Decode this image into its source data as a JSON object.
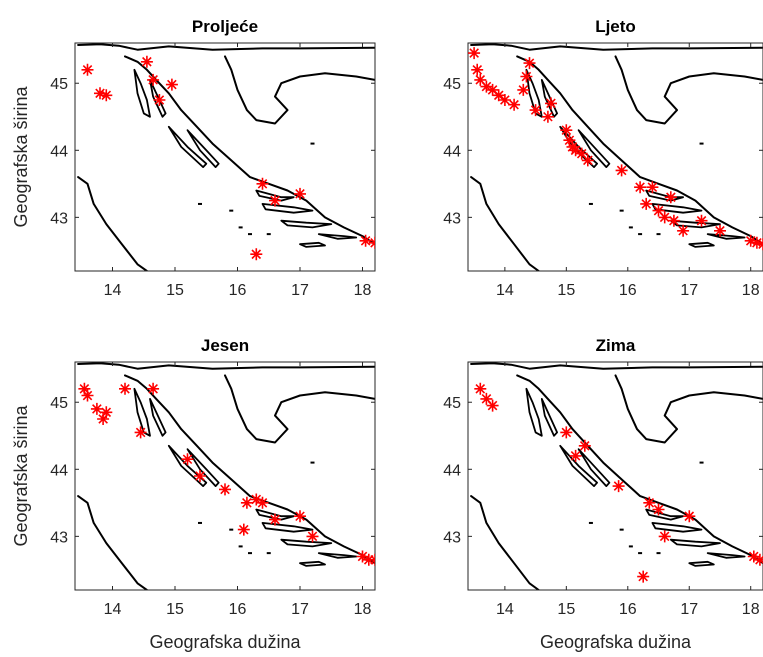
{
  "chart_data": [
    {
      "type": "scatter",
      "title": "Proljeće",
      "ylabel": "Geografska širina",
      "xlabel": "",
      "xticks": [
        "14",
        "15",
        "16",
        "17",
        "18"
      ],
      "yticks": [
        "45",
        "44",
        "43"
      ],
      "xlim": [
        13.4,
        18.2
      ],
      "ylim": [
        42.2,
        45.6
      ],
      "marker": "*",
      "marker_color": "#ff0000",
      "x": [
        13.6,
        13.8,
        13.9,
        14.55,
        14.65,
        14.75,
        14.95,
        16.4,
        16.6,
        17.0,
        16.3,
        18.05,
        18.2
      ],
      "y": [
        45.2,
        44.85,
        44.82,
        45.32,
        45.05,
        44.75,
        44.98,
        43.5,
        43.25,
        43.35,
        42.45,
        42.65,
        42.62
      ]
    },
    {
      "type": "scatter",
      "title": "Ljeto",
      "ylabel": "",
      "xlabel": "",
      "xticks": [
        "14",
        "15",
        "16",
        "17",
        "18"
      ],
      "yticks": [
        "45",
        "44",
        "43"
      ],
      "xlim": [
        13.4,
        18.2
      ],
      "ylim": [
        42.2,
        45.6
      ],
      "marker": "*",
      "marker_color": "#ff0000",
      "x": [
        13.5,
        13.55,
        13.6,
        13.7,
        13.8,
        13.9,
        14.0,
        14.15,
        14.3,
        14.35,
        14.4,
        14.5,
        14.7,
        14.75,
        15.0,
        15.05,
        15.1,
        15.15,
        15.25,
        15.35,
        15.9,
        16.2,
        16.3,
        16.4,
        16.5,
        16.6,
        16.7,
        16.75,
        16.9,
        17.2,
        17.5,
        18.0,
        18.1,
        18.2
      ],
      "y": [
        45.45,
        45.2,
        45.05,
        44.95,
        44.9,
        44.82,
        44.75,
        44.68,
        44.9,
        45.1,
        45.3,
        44.6,
        44.5,
        44.7,
        44.3,
        44.15,
        44.05,
        44.0,
        43.95,
        43.85,
        43.7,
        43.45,
        43.2,
        43.45,
        43.1,
        43.0,
        43.3,
        42.95,
        42.8,
        42.95,
        42.8,
        42.65,
        42.62,
        42.6
      ]
    },
    {
      "type": "scatter",
      "title": "Jesen",
      "ylabel": "Geografska širina",
      "xlabel": "Geografska dužina",
      "xticks": [
        "14",
        "15",
        "16",
        "17",
        "18"
      ],
      "yticks": [
        "45",
        "44",
        "43"
      ],
      "xlim": [
        13.4,
        18.2
      ],
      "ylim": [
        42.2,
        45.6
      ],
      "marker": "*",
      "marker_color": "#ff0000",
      "x": [
        13.55,
        13.6,
        13.75,
        13.85,
        13.9,
        14.2,
        14.45,
        14.65,
        15.2,
        15.4,
        15.8,
        16.1,
        16.15,
        16.3,
        16.4,
        16.6,
        17.0,
        17.2,
        18.0,
        18.1,
        18.2
      ],
      "y": [
        45.2,
        45.1,
        44.9,
        44.75,
        44.85,
        45.2,
        44.55,
        45.2,
        44.15,
        43.9,
        43.7,
        43.1,
        43.5,
        43.55,
        43.5,
        43.25,
        43.3,
        43.0,
        42.7,
        42.65,
        42.65
      ]
    },
    {
      "type": "scatter",
      "title": "Zima",
      "ylabel": "",
      "xlabel": "Geografska dužina",
      "xticks": [
        "14",
        "15",
        "16",
        "17",
        "18"
      ],
      "yticks": [
        "45",
        "44",
        "43"
      ],
      "xlim": [
        13.4,
        18.2
      ],
      "ylim": [
        42.2,
        45.6
      ],
      "marker": "*",
      "marker_color": "#ff0000",
      "x": [
        13.6,
        13.7,
        13.8,
        15.0,
        15.15,
        15.3,
        15.85,
        16.35,
        16.5,
        16.6,
        17.0,
        16.25,
        18.05,
        18.15
      ],
      "y": [
        45.2,
        45.05,
        44.95,
        44.55,
        44.2,
        44.35,
        43.75,
        43.5,
        43.4,
        43.0,
        43.3,
        42.4,
        42.7,
        42.65
      ]
    }
  ]
}
